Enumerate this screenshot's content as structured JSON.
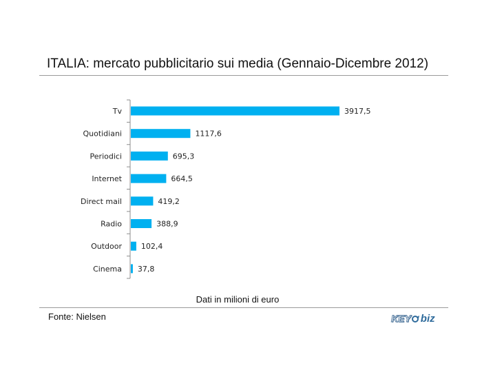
{
  "header": {
    "title": "ITALIA: mercato pubblicitario sui media (Gennaio-Dicembre 2012)"
  },
  "footer": {
    "source": "Fonte: Nielsen",
    "logo_text_1": "KEY",
    "logo_text_2": "biz"
  },
  "chart_data": {
    "type": "bar",
    "orientation": "horizontal",
    "title": "ITALIA: mercato pubblicitario sui media (Gennaio-Dicembre 2012)",
    "xlabel": "Dati in milioni di euro",
    "ylabel": "",
    "categories": [
      "Tv",
      "Quotidiani",
      "Periodici",
      "Internet",
      "Direct mail",
      "Radio",
      "Outdoor",
      "Cinema"
    ],
    "values": [
      3917.5,
      1117.6,
      695.3,
      664.5,
      419.2,
      388.9,
      102.4,
      37.8
    ],
    "value_labels": [
      "3917,5",
      "1117,6",
      "695,3",
      "664,5",
      "419,2",
      "388,9",
      "102,4",
      "37,8"
    ],
    "xlim": [
      0,
      3917.5
    ],
    "grid": false,
    "legend": "none",
    "bar_color": "#00B0F0"
  }
}
